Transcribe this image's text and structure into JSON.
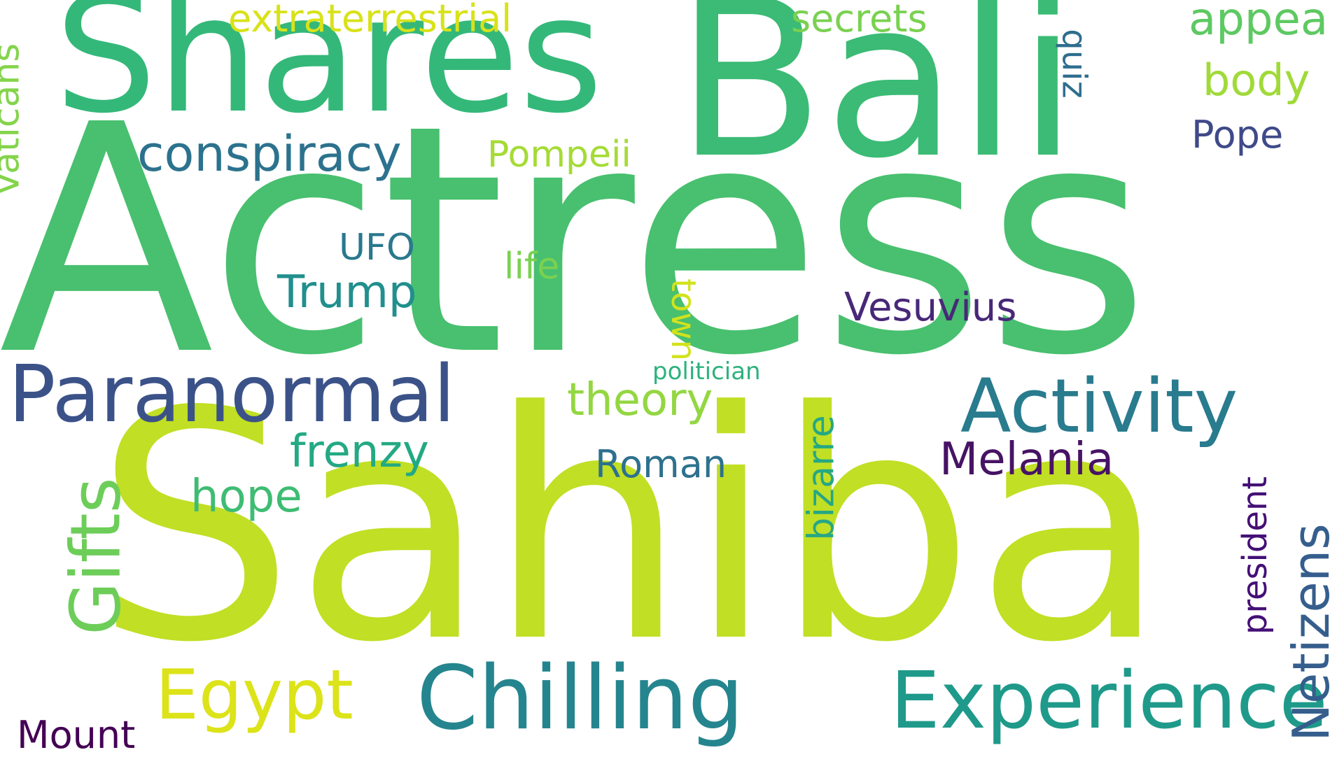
{
  "words": [
    {
      "id": "actress",
      "text": "Actress",
      "color": "#48c06f"
    },
    {
      "id": "sahiba",
      "text": "Sahiba",
      "color": "#c1df24"
    },
    {
      "id": "bali",
      "text": "Bali",
      "color": "#3bbb75"
    },
    {
      "id": "shares",
      "text": "Shares",
      "color": "#34b879"
    },
    {
      "id": "chilling",
      "text": "Chilling",
      "color": "#25858e"
    },
    {
      "id": "experience",
      "text": "Experience",
      "color": "#1f9a8a"
    },
    {
      "id": "paranormal",
      "text": "Paranormal",
      "color": "#3b5289"
    },
    {
      "id": "activity",
      "text": "Activity",
      "color": "#297b8e"
    },
    {
      "id": "gifts",
      "text": "Gifts",
      "color": "#6dcd59"
    },
    {
      "id": "netizens",
      "text": "Netizens",
      "color": "#355e8d"
    },
    {
      "id": "egypt",
      "text": "Egypt",
      "color": "#dce319"
    },
    {
      "id": "conspiracy",
      "text": "conspiracy",
      "color": "#2c728e"
    },
    {
      "id": "vaticans",
      "text": "Vaticans",
      "color": "#84d44b"
    },
    {
      "id": "appea",
      "text": "appea",
      "color": "#5ec962"
    },
    {
      "id": "body",
      "text": "body",
      "color": "#a0da39"
    },
    {
      "id": "pope",
      "text": "Pope",
      "color": "#3e4a89"
    },
    {
      "id": "pompeii",
      "text": "Pompeii",
      "color": "#a5db36"
    },
    {
      "id": "extraterrestrial",
      "text": "extraterrestrial",
      "color": "#d8e219"
    },
    {
      "id": "secrets",
      "text": "secrets",
      "color": "#7ad151"
    },
    {
      "id": "quiz",
      "text": "quiz",
      "color": "#2e6e8e"
    },
    {
      "id": "ufo",
      "text": "UFO",
      "color": "#2a788e"
    },
    {
      "id": "life",
      "text": "life",
      "color": "#7ad151"
    },
    {
      "id": "trump",
      "text": "Trump",
      "color": "#218f8d"
    },
    {
      "id": "town",
      "text": "town",
      "color": "#d2e21b"
    },
    {
      "id": "vesuvius",
      "text": "Vesuvius",
      "color": "#482878"
    },
    {
      "id": "politician",
      "text": "politician",
      "color": "#2db27d"
    },
    {
      "id": "bizarre",
      "text": "bizarre",
      "color": "#26a784"
    },
    {
      "id": "theory",
      "text": "theory",
      "color": "#93d741"
    },
    {
      "id": "frenzy",
      "text": "frenzy",
      "color": "#23a983"
    },
    {
      "id": "roman",
      "text": "Roman",
      "color": "#2d718e"
    },
    {
      "id": "melania",
      "text": "Melania",
      "color": "#471365"
    },
    {
      "id": "president",
      "text": "president",
      "color": "#440f76"
    },
    {
      "id": "hope",
      "text": "hope",
      "color": "#3fbc73"
    },
    {
      "id": "mount",
      "text": "Mount",
      "color": "#440154"
    }
  ]
}
